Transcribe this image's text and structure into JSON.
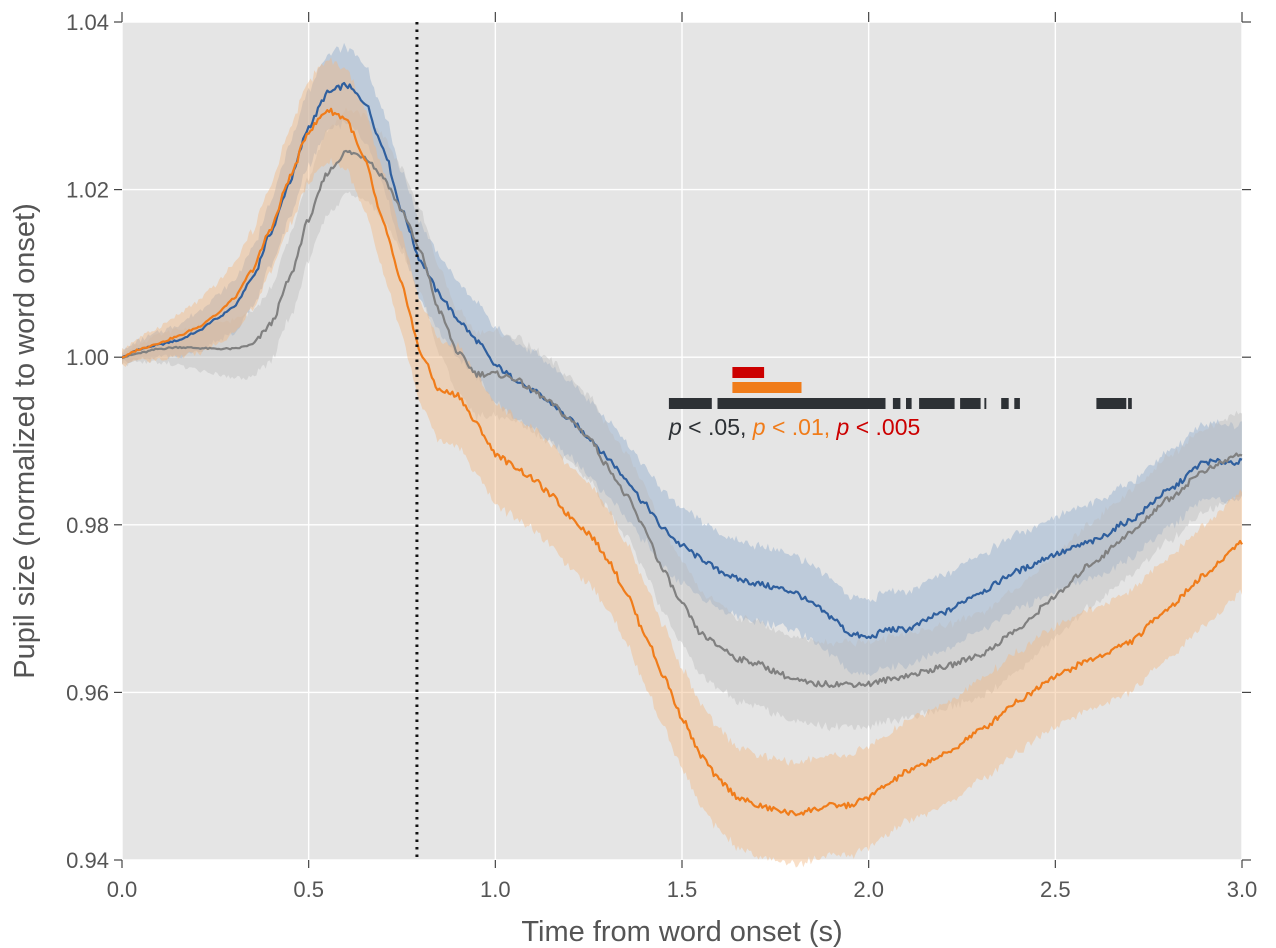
{
  "chart_data": {
    "type": "line",
    "title": "",
    "xlabel": "Time from word onset (s)",
    "ylabel": "Pupil size (normalized to word onset)",
    "xlim": [
      0.0,
      3.0
    ],
    "ylim": [
      0.94,
      1.04
    ],
    "xticks": [
      "0.0",
      "0.5",
      "1.0",
      "1.5",
      "2.0",
      "2.5",
      "3.0"
    ],
    "yticks": [
      "0.94",
      "0.96",
      "0.98",
      "1.00",
      "1.02",
      "1.04"
    ],
    "grid": true,
    "background": "#e5e5e5",
    "vline": {
      "x": 0.79,
      "style": "dotted",
      "color": "#111111"
    },
    "series": [
      {
        "color": "#2f5f9e",
        "band_color": "#8eaacb",
        "x": [
          0.0,
          0.05,
          0.1,
          0.15,
          0.2,
          0.25,
          0.3,
          0.35,
          0.4,
          0.45,
          0.5,
          0.55,
          0.6,
          0.65,
          0.7,
          0.75,
          0.8,
          0.85,
          0.9,
          0.95,
          1.0,
          1.05,
          1.1,
          1.15,
          1.2,
          1.25,
          1.3,
          1.35,
          1.4,
          1.45,
          1.5,
          1.55,
          1.6,
          1.65,
          1.7,
          1.75,
          1.8,
          1.85,
          1.9,
          1.95,
          2.0,
          2.05,
          2.1,
          2.2,
          2.3,
          2.4,
          2.5,
          2.6,
          2.7,
          2.8,
          2.9,
          3.0
        ],
        "y": [
          1.0,
          1.001,
          1.0015,
          1.002,
          1.003,
          1.0045,
          1.006,
          1.0095,
          1.015,
          1.021,
          1.0275,
          1.0315,
          1.0325,
          1.0305,
          1.025,
          1.0175,
          1.0115,
          1.0075,
          1.0045,
          1.002,
          0.999,
          0.9975,
          0.996,
          0.9945,
          0.9925,
          0.9905,
          0.988,
          0.9855,
          0.9825,
          0.9795,
          0.9775,
          0.976,
          0.9745,
          0.9735,
          0.973,
          0.9725,
          0.972,
          0.9705,
          0.969,
          0.967,
          0.9665,
          0.9675,
          0.9675,
          0.9695,
          0.972,
          0.9745,
          0.9765,
          0.978,
          0.9805,
          0.984,
          0.9875,
          0.9875
        ],
        "band": 0.0045
      },
      {
        "color": "#808080",
        "band_color": "#bcbcbc",
        "x": [
          0.0,
          0.05,
          0.1,
          0.15,
          0.2,
          0.25,
          0.3,
          0.35,
          0.4,
          0.45,
          0.5,
          0.55,
          0.6,
          0.65,
          0.7,
          0.75,
          0.8,
          0.85,
          0.9,
          0.95,
          1.0,
          1.05,
          1.1,
          1.15,
          1.2,
          1.25,
          1.3,
          1.35,
          1.4,
          1.45,
          1.5,
          1.55,
          1.6,
          1.65,
          1.7,
          1.75,
          1.8,
          1.85,
          1.9,
          1.95,
          2.0,
          2.05,
          2.1,
          2.2,
          2.3,
          2.4,
          2.5,
          2.6,
          2.7,
          2.8,
          2.9,
          3.0
        ],
        "y": [
          1.0,
          1.0005,
          1.001,
          1.0012,
          1.0011,
          1.001,
          1.001,
          1.0015,
          1.004,
          1.0095,
          1.0165,
          1.022,
          1.0245,
          1.024,
          1.0215,
          1.0175,
          1.0125,
          1.0055,
          1.0005,
          0.998,
          0.998,
          0.9975,
          0.996,
          0.9945,
          0.9925,
          0.9905,
          0.987,
          0.9835,
          0.9795,
          0.9745,
          0.9705,
          0.967,
          0.9655,
          0.964,
          0.9635,
          0.9625,
          0.9615,
          0.961,
          0.961,
          0.961,
          0.961,
          0.9615,
          0.962,
          0.963,
          0.9645,
          0.9675,
          0.9715,
          0.9755,
          0.979,
          0.983,
          0.9865,
          0.9885
        ],
        "band": 0.005
      },
      {
        "color": "#f07c1a",
        "band_color": "#f2b882",
        "x": [
          0.0,
          0.05,
          0.1,
          0.15,
          0.2,
          0.25,
          0.3,
          0.35,
          0.4,
          0.45,
          0.5,
          0.55,
          0.6,
          0.65,
          0.7,
          0.75,
          0.8,
          0.85,
          0.9,
          0.95,
          1.0,
          1.05,
          1.1,
          1.15,
          1.2,
          1.25,
          1.3,
          1.35,
          1.4,
          1.45,
          1.5,
          1.55,
          1.6,
          1.65,
          1.7,
          1.75,
          1.8,
          1.85,
          1.9,
          1.95,
          2.0,
          2.05,
          2.1,
          2.2,
          2.3,
          2.4,
          2.5,
          2.6,
          2.7,
          2.8,
          2.9,
          3.0
        ],
        "y": [
          1.0,
          1.001,
          1.0017,
          1.0025,
          1.0035,
          1.005,
          1.007,
          1.0105,
          1.0155,
          1.0215,
          1.027,
          1.0295,
          1.0285,
          1.0235,
          1.016,
          1.0085,
          1.0005,
          0.996,
          0.9955,
          0.992,
          0.9885,
          0.987,
          0.9855,
          0.9835,
          0.981,
          0.979,
          0.976,
          0.972,
          0.967,
          0.962,
          0.957,
          0.9525,
          0.9495,
          0.9475,
          0.9465,
          0.946,
          0.9455,
          0.946,
          0.9465,
          0.9465,
          0.9475,
          0.949,
          0.9505,
          0.9525,
          0.9555,
          0.959,
          0.962,
          0.964,
          0.966,
          0.97,
          0.974,
          0.978
        ],
        "band": 0.006
      }
    ],
    "significance": {
      "label": {
        "p1": "p",
        "t1": " < .05, ",
        "p2": "p",
        "t2": " < .01, ",
        "p3": "p",
        "t3": " < .005"
      },
      "bars": [
        {
          "threshold": "p < .05",
          "color": "#2d3135",
          "segments": [
            [
              1.465,
              1.58
            ],
            [
              1.595,
              2.045
            ],
            [
              2.065,
              2.085
            ],
            [
              2.1,
              2.115
            ],
            [
              2.135,
              2.23
            ],
            [
              2.245,
              2.3
            ],
            [
              2.31,
              2.315
            ],
            [
              2.355,
              2.375
            ],
            [
              2.39,
              2.405
            ],
            [
              2.61,
              2.69
            ],
            [
              2.695,
              2.705
            ]
          ]
        },
        {
          "threshold": "p < .01",
          "color": "#f07c1a",
          "segments": [
            [
              1.635,
              1.82
            ]
          ]
        },
        {
          "threshold": "p < .005",
          "color": "#cc0000",
          "segments": [
            [
              1.635,
              1.72
            ]
          ]
        }
      ]
    }
  }
}
